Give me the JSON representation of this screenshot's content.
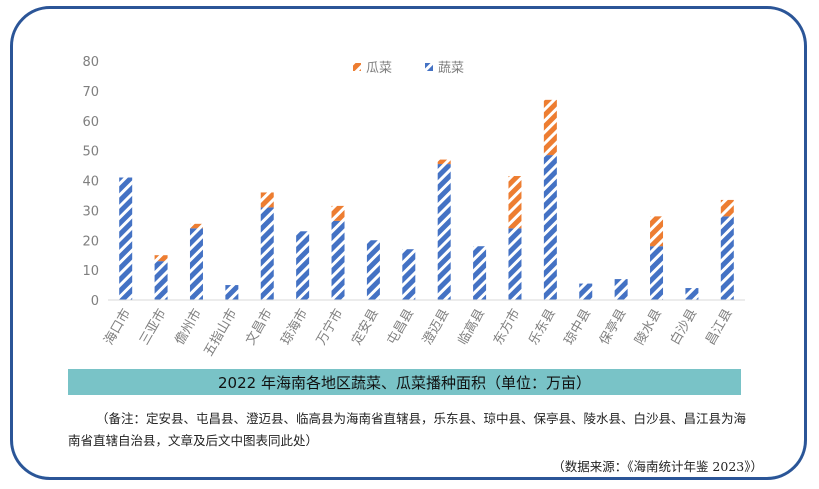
{
  "chart_data": {
    "type": "bar",
    "stacked": true,
    "title": "2022 年海南各地区蔬菜、瓜菜播种面积（单位：万亩）",
    "xlabel": "",
    "ylabel": "",
    "ylim": [
      0,
      80
    ],
    "yticks": [
      0,
      10,
      20,
      30,
      40,
      50,
      60,
      70,
      80
    ],
    "grid": false,
    "legend": "top-center",
    "categories": [
      "海口市",
      "三亚市",
      "儋州市",
      "五指山市",
      "文昌市",
      "琼海市",
      "万宁市",
      "定安县",
      "屯昌县",
      "澄迈县",
      "临高县",
      "东方市",
      "乐东县",
      "琼中县",
      "保亭县",
      "陵水县",
      "白沙县",
      "昌江县"
    ],
    "series": [
      {
        "name": "蔬菜",
        "color": "#4472c4",
        "values": [
          41,
          13,
          24,
          5,
          31,
          23,
          26.5,
          20,
          17,
          45.5,
          18,
          24,
          48.5,
          5.5,
          7,
          18,
          4,
          28
        ]
      },
      {
        "name": "瓜菜",
        "color": "#ed7d31",
        "values": [
          0,
          2,
          1.5,
          0,
          5,
          0,
          5,
          0,
          0,
          1.5,
          0,
          17.5,
          18.5,
          0,
          0,
          10,
          0,
          5.5
        ]
      }
    ]
  },
  "note": "（备注：定安县、屯昌县、澄迈县、临高县为海南省直辖县，乐东县、琼中县、保亭县、陵水县、白沙县、昌江县为海南省直辖自治县，文章及后文中图表同此处）",
  "source": "（数据来源：《海南统计年鉴 2023》）"
}
